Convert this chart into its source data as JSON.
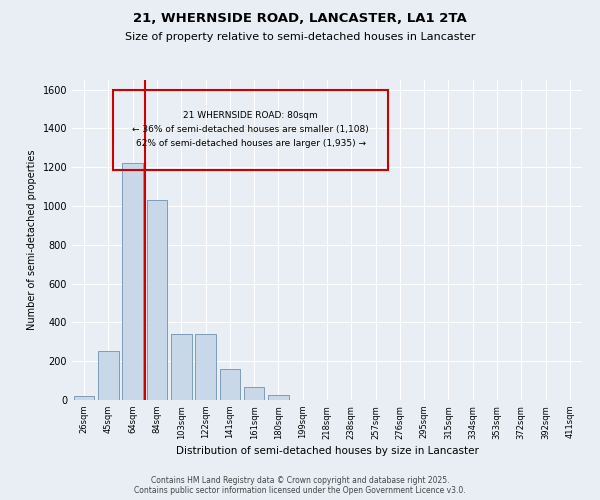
{
  "title1": "21, WHERNSIDE ROAD, LANCASTER, LA1 2TA",
  "title2": "Size of property relative to semi-detached houses in Lancaster",
  "xlabel": "Distribution of semi-detached houses by size in Lancaster",
  "ylabel": "Number of semi-detached properties",
  "categories": [
    "26sqm",
    "45sqm",
    "64sqm",
    "84sqm",
    "103sqm",
    "122sqm",
    "141sqm",
    "161sqm",
    "180sqm",
    "199sqm",
    "218sqm",
    "238sqm",
    "257sqm",
    "276sqm",
    "295sqm",
    "315sqm",
    "334sqm",
    "353sqm",
    "372sqm",
    "392sqm",
    "411sqm"
  ],
  "values": [
    20,
    255,
    1220,
    1030,
    340,
    340,
    160,
    65,
    25,
    0,
    0,
    0,
    0,
    0,
    0,
    0,
    0,
    0,
    0,
    0,
    0
  ],
  "bar_color": "#c8d8e8",
  "bar_edge_color": "#7090b0",
  "vline_color": "#cc0000",
  "annotation_title": "21 WHERNSIDE ROAD: 80sqm",
  "annotation_line1": "← 36% of semi-detached houses are smaller (1,108)",
  "annotation_line2": "62% of semi-detached houses are larger (1,935) →",
  "annotation_box_color": "#cc0000",
  "ylim": [
    0,
    1650
  ],
  "yticks": [
    0,
    200,
    400,
    600,
    800,
    1000,
    1200,
    1400,
    1600
  ],
  "background_color": "#e8eef4",
  "grid_color": "#ffffff",
  "footer1": "Contains HM Land Registry data © Crown copyright and database right 2025.",
  "footer2": "Contains public sector information licensed under the Open Government Licence v3.0."
}
